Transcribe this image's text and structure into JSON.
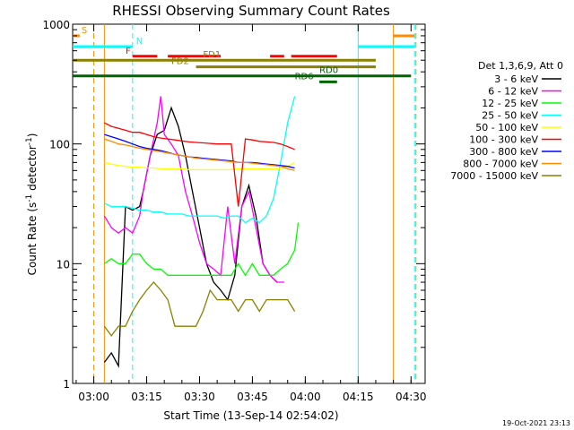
{
  "chart_data": {
    "type": "line",
    "title": "RHESSI Observing Summary Count Rates",
    "xlabel": "Start Time (13-Sep-14 02:54:02)",
    "ylabel_main": "Count Rate (s",
    "ylabel_sup1": "-1",
    "ylabel_mid": " detector",
    "ylabel_sup2": "-1",
    "ylabel_end": ")",
    "y_scale": "log",
    "ylim": [
      1,
      1000
    ],
    "xlim_min": [
      0,
      100
    ],
    "x_ticks": [
      {
        "label": "03:00",
        "m": 6
      },
      {
        "label": "03:15",
        "m": 21
      },
      {
        "label": "03:30",
        "m": 36
      },
      {
        "label": "03:45",
        "m": 51
      },
      {
        "label": "04:00",
        "m": 66
      },
      {
        "label": "04:15",
        "m": 81
      },
      {
        "label": "04:30",
        "m": 96
      }
    ],
    "y_ticks": [
      {
        "label": "1",
        "v": 1
      },
      {
        "label": "10",
        "v": 10
      },
      {
        "label": "100",
        "v": 100
      },
      {
        "label": "1000",
        "v": 1000
      }
    ],
    "legend_title": "Det 1,3,6,9, Att 0",
    "legend_position": "right",
    "series": [
      {
        "name": "3 - 6 keV",
        "color": "#000000",
        "points": [
          [
            9,
            1.5
          ],
          [
            11,
            1.8
          ],
          [
            13,
            1.4
          ],
          [
            15,
            30
          ],
          [
            17,
            28
          ],
          [
            19,
            30
          ],
          [
            20,
            40
          ],
          [
            22,
            80
          ],
          [
            24,
            120
          ],
          [
            26,
            130
          ],
          [
            28,
            200
          ],
          [
            30,
            140
          ],
          [
            32,
            80
          ],
          [
            34,
            40
          ],
          [
            36,
            20
          ],
          [
            38,
            10
          ],
          [
            40,
            7
          ],
          [
            42,
            6
          ],
          [
            44,
            5
          ],
          [
            46,
            8
          ],
          [
            48,
            30
          ],
          [
            50,
            45
          ],
          [
            52,
            25
          ],
          [
            54,
            10
          ],
          [
            56,
            8
          ],
          [
            58,
            7
          ]
        ]
      },
      {
        "name": "6 - 12 keV",
        "color": "#ff00ff",
        "points": [
          [
            9,
            25
          ],
          [
            11,
            20
          ],
          [
            13,
            18
          ],
          [
            15,
            20
          ],
          [
            17,
            18
          ],
          [
            19,
            25
          ],
          [
            20,
            40
          ],
          [
            22,
            80
          ],
          [
            24,
            150
          ],
          [
            25,
            250
          ],
          [
            26,
            120
          ],
          [
            28,
            100
          ],
          [
            30,
            80
          ],
          [
            32,
            40
          ],
          [
            34,
            25
          ],
          [
            36,
            15
          ],
          [
            38,
            10
          ],
          [
            40,
            9
          ],
          [
            42,
            8
          ],
          [
            44,
            30
          ],
          [
            46,
            10
          ],
          [
            48,
            30
          ],
          [
            50,
            40
          ],
          [
            52,
            20
          ],
          [
            54,
            10
          ],
          [
            56,
            8
          ],
          [
            58,
            7
          ],
          [
            60,
            7
          ]
        ]
      },
      {
        "name": "12 - 25 keV",
        "color": "#00ff00",
        "points": [
          [
            9,
            10
          ],
          [
            11,
            11
          ],
          [
            13,
            10
          ],
          [
            15,
            10
          ],
          [
            17,
            12
          ],
          [
            19,
            12
          ],
          [
            21,
            10
          ],
          [
            23,
            9
          ],
          [
            25,
            9
          ],
          [
            27,
            8
          ],
          [
            29,
            8
          ],
          [
            31,
            8
          ],
          [
            33,
            8
          ],
          [
            35,
            8
          ],
          [
            37,
            8
          ],
          [
            39,
            8
          ],
          [
            41,
            8
          ],
          [
            43,
            8
          ],
          [
            45,
            8
          ],
          [
            47,
            10
          ],
          [
            49,
            8
          ],
          [
            51,
            10
          ],
          [
            53,
            8
          ],
          [
            55,
            8
          ],
          [
            57,
            8
          ],
          [
            59,
            9
          ],
          [
            61,
            10
          ],
          [
            63,
            13
          ],
          [
            64,
            22
          ]
        ]
      },
      {
        "name": "25 - 50 keV",
        "color": "#00ffff",
        "points": [
          [
            9,
            32
          ],
          [
            11,
            30
          ],
          [
            13,
            30
          ],
          [
            15,
            30
          ],
          [
            17,
            29
          ],
          [
            19,
            28
          ],
          [
            21,
            28
          ],
          [
            23,
            27
          ],
          [
            25,
            27
          ],
          [
            27,
            26
          ],
          [
            29,
            26
          ],
          [
            31,
            26
          ],
          [
            33,
            25
          ],
          [
            35,
            25
          ],
          [
            37,
            25
          ],
          [
            39,
            25
          ],
          [
            41,
            25
          ],
          [
            43,
            24
          ],
          [
            45,
            25
          ],
          [
            47,
            25
          ],
          [
            49,
            22
          ],
          [
            51,
            24
          ],
          [
            53,
            22
          ],
          [
            55,
            25
          ],
          [
            57,
            35
          ],
          [
            59,
            70
          ],
          [
            61,
            150
          ],
          [
            63,
            250
          ]
        ]
      },
      {
        "name": "50 - 100 keV",
        "color": "#ffff00",
        "points": [
          [
            9,
            70
          ],
          [
            11,
            68
          ],
          [
            13,
            66
          ],
          [
            15,
            65
          ],
          [
            17,
            64
          ],
          [
            19,
            64
          ],
          [
            21,
            63
          ],
          [
            23,
            63
          ],
          [
            25,
            62
          ],
          [
            27,
            62
          ],
          [
            29,
            62
          ],
          [
            31,
            62
          ],
          [
            33,
            61
          ],
          [
            35,
            61
          ],
          [
            37,
            61
          ],
          [
            39,
            61
          ],
          [
            41,
            61
          ],
          [
            43,
            61
          ],
          [
            45,
            61
          ],
          [
            47,
            62
          ],
          [
            49,
            62
          ],
          [
            51,
            62
          ],
          [
            53,
            62
          ],
          [
            55,
            62
          ],
          [
            57,
            62
          ],
          [
            59,
            62
          ],
          [
            61,
            65
          ],
          [
            63,
            70
          ]
        ]
      },
      {
        "name": "100 - 300 keV",
        "color": "#ff0000",
        "points": [
          [
            9,
            150
          ],
          [
            11,
            140
          ],
          [
            13,
            135
          ],
          [
            15,
            130
          ],
          [
            17,
            125
          ],
          [
            19,
            125
          ],
          [
            21,
            120
          ],
          [
            23,
            115
          ],
          [
            25,
            112
          ],
          [
            27,
            110
          ],
          [
            29,
            108
          ],
          [
            31,
            106
          ],
          [
            33,
            104
          ],
          [
            35,
            103
          ],
          [
            37,
            102
          ],
          [
            39,
            101
          ],
          [
            41,
            100
          ],
          [
            43,
            100
          ],
          [
            45,
            100
          ],
          [
            47,
            30
          ],
          [
            49,
            110
          ],
          [
            51,
            108
          ],
          [
            53,
            105
          ],
          [
            55,
            104
          ],
          [
            57,
            103
          ],
          [
            59,
            100
          ],
          [
            61,
            95
          ],
          [
            63,
            90
          ]
        ]
      },
      {
        "name": "300 - 800 keV",
        "color": "#0000ff",
        "points": [
          [
            9,
            120
          ],
          [
            11,
            115
          ],
          [
            13,
            110
          ],
          [
            15,
            105
          ],
          [
            17,
            100
          ],
          [
            19,
            95
          ],
          [
            21,
            92
          ],
          [
            23,
            90
          ],
          [
            25,
            88
          ],
          [
            27,
            85
          ],
          [
            29,
            82
          ],
          [
            31,
            80
          ],
          [
            33,
            78
          ],
          [
            35,
            77
          ],
          [
            37,
            76
          ],
          [
            39,
            75
          ],
          [
            41,
            74
          ],
          [
            43,
            73
          ],
          [
            45,
            72
          ],
          [
            47,
            70
          ],
          [
            49,
            70
          ],
          [
            51,
            70
          ],
          [
            53,
            69
          ],
          [
            55,
            68
          ],
          [
            57,
            67
          ],
          [
            59,
            66
          ],
          [
            61,
            65
          ],
          [
            63,
            63
          ]
        ]
      },
      {
        "name": "800 - 7000 keV",
        "color": "#ff8c00",
        "points": [
          [
            9,
            110
          ],
          [
            11,
            105
          ],
          [
            13,
            100
          ],
          [
            15,
            98
          ],
          [
            17,
            95
          ],
          [
            19,
            92
          ],
          [
            21,
            90
          ],
          [
            23,
            88
          ],
          [
            25,
            86
          ],
          [
            27,
            84
          ],
          [
            29,
            82
          ],
          [
            31,
            80
          ],
          [
            33,
            78
          ],
          [
            35,
            76
          ],
          [
            37,
            75
          ],
          [
            39,
            74
          ],
          [
            41,
            73
          ],
          [
            43,
            72
          ],
          [
            45,
            71
          ],
          [
            47,
            70
          ],
          [
            49,
            70
          ],
          [
            51,
            69
          ],
          [
            53,
            68
          ],
          [
            55,
            67
          ],
          [
            57,
            66
          ],
          [
            59,
            65
          ],
          [
            61,
            62
          ],
          [
            63,
            60
          ]
        ]
      },
      {
        "name": "7000 - 15000 keV",
        "color": "#8b8000",
        "points": [
          [
            9,
            3
          ],
          [
            11,
            2.5
          ],
          [
            13,
            3
          ],
          [
            15,
            3
          ],
          [
            17,
            4
          ],
          [
            19,
            5
          ],
          [
            21,
            6
          ],
          [
            23,
            7
          ],
          [
            25,
            6
          ],
          [
            27,
            5
          ],
          [
            29,
            3
          ],
          [
            31,
            3
          ],
          [
            33,
            3
          ],
          [
            35,
            3
          ],
          [
            37,
            4
          ],
          [
            39,
            6
          ],
          [
            41,
            5
          ],
          [
            43,
            5
          ],
          [
            45,
            5
          ],
          [
            47,
            4
          ],
          [
            49,
            5
          ],
          [
            51,
            5
          ],
          [
            53,
            4
          ],
          [
            55,
            5
          ],
          [
            57,
            5
          ],
          [
            59,
            5
          ],
          [
            61,
            5
          ],
          [
            63,
            4
          ]
        ]
      }
    ],
    "state_bars": [
      {
        "label": "S",
        "color": "#ff8c00",
        "segments": [
          [
            0,
            2
          ],
          [
            91,
            97
          ]
        ],
        "v": 800,
        "label_m": 2.5
      },
      {
        "label": "N",
        "color": "#00ffff",
        "segments": [
          [
            0,
            17
          ],
          [
            81,
            97
          ]
        ],
        "v": 650,
        "label_m": 18
      },
      {
        "label": "F",
        "color": "#ff0000",
        "segments": [
          [
            17,
            24
          ],
          [
            27,
            42
          ],
          [
            56,
            60
          ],
          [
            62,
            75
          ]
        ],
        "v": 540,
        "label_m": 15
      },
      {
        "label": "FD1",
        "color": "#8b8000",
        "segments": [
          [
            0,
            86
          ]
        ],
        "v": 500,
        "label_m": 37
      },
      {
        "label": "FD2",
        "color": "#8b8000",
        "segments": [
          [
            35,
            86
          ]
        ],
        "v": 440,
        "label_m": 28
      },
      {
        "label": "RD0",
        "color": "#006400",
        "segments": [
          [
            0,
            96
          ]
        ],
        "v": 370,
        "label_m": 70
      },
      {
        "label": "RD6",
        "color": "#006400",
        "segments": [
          [
            70,
            75
          ]
        ],
        "v": 330,
        "label_m": 63
      }
    ],
    "vlines": [
      {
        "m": 6,
        "color": "#ff8c00",
        "style": "dash"
      },
      {
        "m": 9,
        "color": "#ff8c00",
        "style": "solid"
      },
      {
        "m": 17,
        "color": "#00ffff",
        "style": "dash"
      },
      {
        "m": 81,
        "color": "#00ffff",
        "style": "solid"
      },
      {
        "m": 91,
        "color": "#ff8c00",
        "style": "solid"
      },
      {
        "m": 97,
        "color": "#00ffff",
        "style": "dash"
      },
      {
        "m": 97.4,
        "color": "#ff8c00",
        "style": "dash"
      }
    ]
  },
  "stamp": "19-Oct-2021 23:13"
}
